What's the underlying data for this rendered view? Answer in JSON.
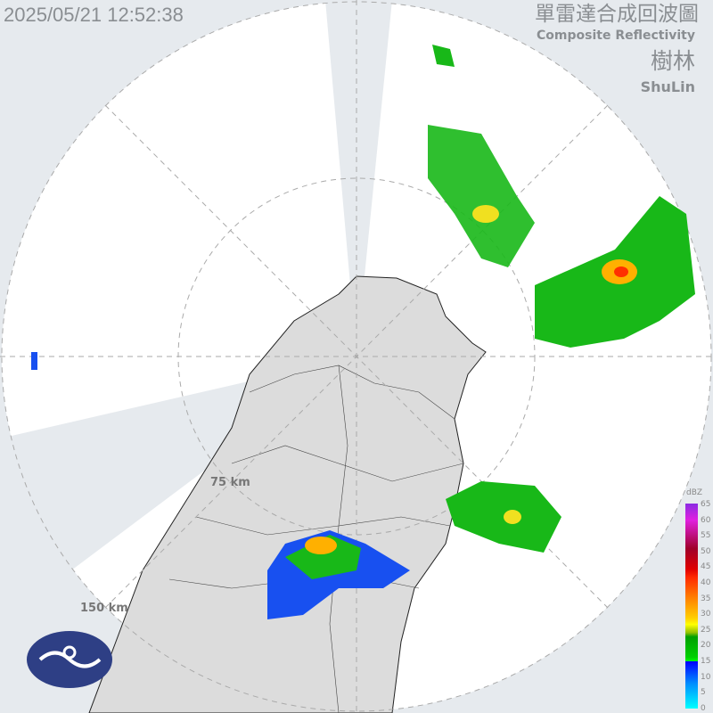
{
  "timestamp": "2025/05/21 12:52:38",
  "title_zh": "單雷達合成回波圖",
  "title_en": "Composite Reflectivity",
  "station_zh": "樹林",
  "station_en": "ShuLin",
  "rings": {
    "inner": "75 km",
    "outer": "150 km"
  },
  "legend": {
    "unit": "dBZ",
    "ticks": [
      "65",
      "60",
      "55",
      "50",
      "45",
      "40",
      "35",
      "30",
      "25",
      "20",
      "15",
      "10",
      "5",
      "0"
    ]
  },
  "colors": {
    "background": "#e6eaee",
    "coverage": "#ffffff",
    "land": "#dcdcdc",
    "logo": "#2e3f85"
  }
}
